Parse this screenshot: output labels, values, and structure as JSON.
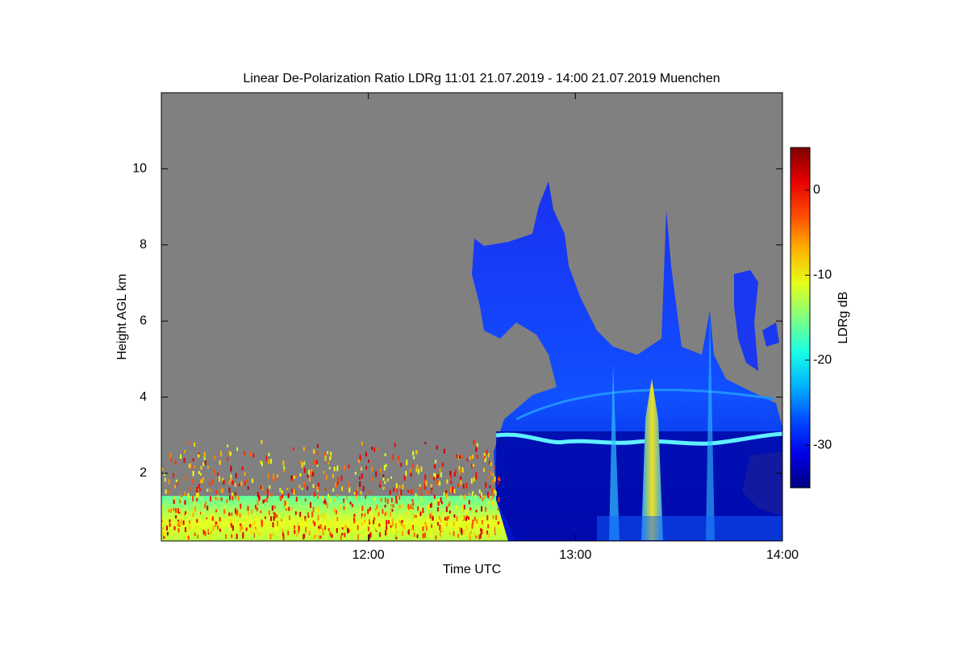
{
  "chart_data": {
    "type": "heatmap",
    "title": "Linear De-Polarization Ratio LDRg   11:01 21.07.2019 - 14:00 21.07.2019 Muenchen",
    "x_label": "Time UTC",
    "y_label": "Height AGL km",
    "xlim": [
      11.0,
      14.0
    ],
    "xticks": [
      {
        "value": 12,
        "label": "12:00"
      },
      {
        "value": 13,
        "label": "13:00"
      },
      {
        "value": 14,
        "label": "14:00"
      }
    ],
    "ylim": [
      0.22,
      12
    ],
    "yticks": [
      2,
      4,
      6,
      8,
      10
    ],
    "colorbar_label": "LDRg dB",
    "colormap": "jet",
    "clim": [
      -35,
      5
    ],
    "cticks": [
      0,
      -10,
      -20,
      -30
    ]
  }
}
